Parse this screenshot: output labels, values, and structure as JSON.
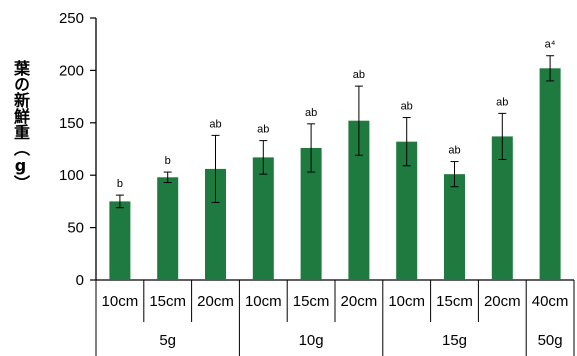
{
  "chart_data": {
    "type": "bar",
    "ylabel": "葉の新鮮重（g）",
    "ylim": [
      0,
      250
    ],
    "yticks": [
      "0",
      "50",
      "100",
      "150",
      "200",
      "250"
    ],
    "grid": false,
    "bar_color": "#1e7a3e",
    "categories": [
      "10cm",
      "15cm",
      "20cm",
      "10cm",
      "15cm",
      "20cm",
      "10cm",
      "15cm",
      "20cm",
      "40cm"
    ],
    "groups": [
      {
        "label": "5g",
        "span": 3
      },
      {
        "label": "10g",
        "span": 3
      },
      {
        "label": "15g",
        "span": 3
      },
      {
        "label": "50g",
        "span": 1
      }
    ],
    "values": [
      75,
      98,
      106,
      117,
      126,
      152,
      132,
      101,
      137,
      202
    ],
    "errors": [
      6,
      5,
      32,
      16,
      23,
      33,
      23,
      12,
      22,
      12
    ],
    "significance": [
      "b",
      "b",
      "ab",
      "ab",
      "ab",
      "ab",
      "ab",
      "ab",
      "ab",
      "a⁴"
    ]
  }
}
